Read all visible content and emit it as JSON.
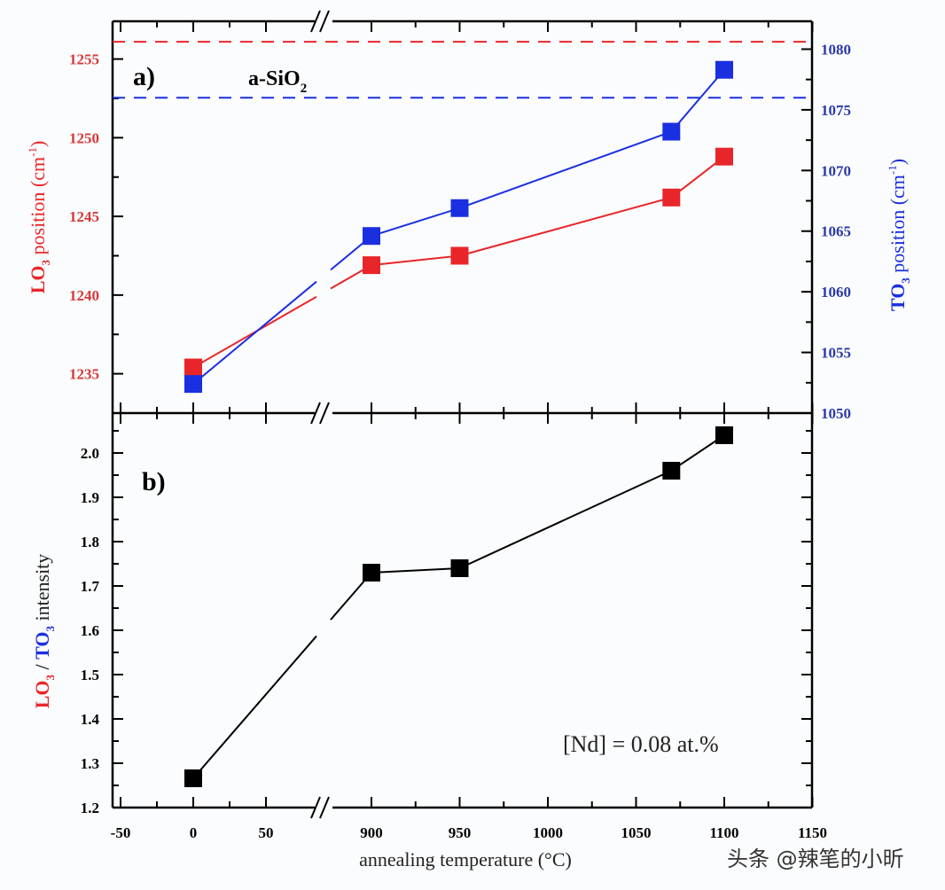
{
  "chart_data": [
    {
      "panel_label": "a)",
      "type": "line",
      "x": [
        0,
        900,
        950,
        1070,
        1100
      ],
      "xlim": [
        -50,
        1150
      ],
      "x_break": [
        50,
        900
      ],
      "series": [
        {
          "axis": "left",
          "color": "#e8262a",
          "values": [
            1235.4,
            1241.9,
            1242.5,
            1246.2,
            1248.8
          ]
        },
        {
          "axis": "right",
          "color": "#1a2fe0",
          "values": [
            1052.4,
            1064.6,
            1066.9,
            1073.2,
            1078.3
          ]
        }
      ],
      "reference_lines": [
        {
          "axis": "left",
          "value": 1256.1,
          "color": "#e8262a",
          "style": "dashed"
        },
        {
          "axis": "right",
          "value": 1076.0,
          "color": "#1a2fe0",
          "style": "dashed"
        }
      ],
      "annotation": {
        "text": "a-SiO",
        "sub": "2"
      },
      "ylabel_left": {
        "main": "LO",
        "sub": "3",
        "rest": " position (cm",
        "sup": "-1",
        "end": ")"
      },
      "ylabel_right": {
        "main": "TO",
        "sub": "3",
        "rest": " position (cm",
        "sup": "-1",
        "end": ")"
      },
      "ylim_left": [
        1232.5,
        1257.4
      ],
      "ylim_right": [
        1050,
        1082.3
      ],
      "yticks_left": [
        "1235",
        "1240",
        "1245",
        "1250",
        "1255"
      ],
      "yticks_right": [
        "1050",
        "1055",
        "1060",
        "1065",
        "1070",
        "1075",
        "1080"
      ]
    },
    {
      "panel_label": "b)",
      "type": "line",
      "x": [
        0,
        900,
        950,
        1070,
        1100
      ],
      "series": [
        {
          "color": "#000000",
          "values": [
            1.266,
            1.73,
            1.74,
            1.96,
            2.04
          ]
        }
      ],
      "ylim": [
        1.2,
        2.09
      ],
      "yticks": [
        "1.2",
        "1.3",
        "1.4",
        "1.5",
        "1.6",
        "1.7",
        "1.8",
        "1.9",
        "2.0"
      ],
      "ylabel": {
        "a": "LO",
        "a_sub": "3",
        "sep": " / ",
        "b": "TO",
        "b_sub": "3",
        "rest": " intensity"
      },
      "annotation": "[Nd] = 0.08 at.%",
      "xlabel": "annealing temperature (°C)",
      "xticks": [
        "-50",
        "0",
        "50",
        "900",
        "950",
        "1000",
        "1050",
        "1100",
        "1150"
      ]
    }
  ],
  "watermark": "头条 @辣笔的小昕"
}
